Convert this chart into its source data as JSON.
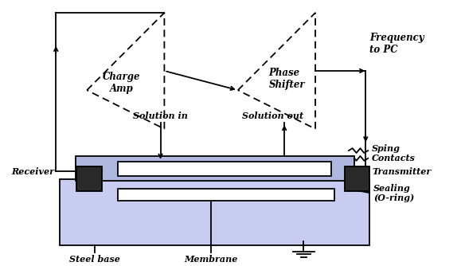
{
  "figsize": [
    5.79,
    3.34
  ],
  "dpi": 100,
  "bg_color": "#ffffff",
  "amp1_label": "Charge\nAmp",
  "amp2_label": "Phase\nShifter",
  "freq_label": "Frequency\nto PC",
  "sol_in_label": "Solution in",
  "sol_out_label": "Solution out",
  "sping_label": "Sping",
  "contacts_label": "Contacts",
  "receiver_label": "Receiver",
  "transmitter_label": "Transmitter",
  "sealing_label": "Sealing\n(O-ring)",
  "steel_base_label": "Steel base",
  "membrane_label": "Membrane",
  "lw": 1.3,
  "fs": 8.5,
  "blue_fill": "#c8ccf0",
  "dark_fill": "#2a2a2a",
  "white": "#ffffff",
  "lightblue_cap": "#b0b8e0"
}
